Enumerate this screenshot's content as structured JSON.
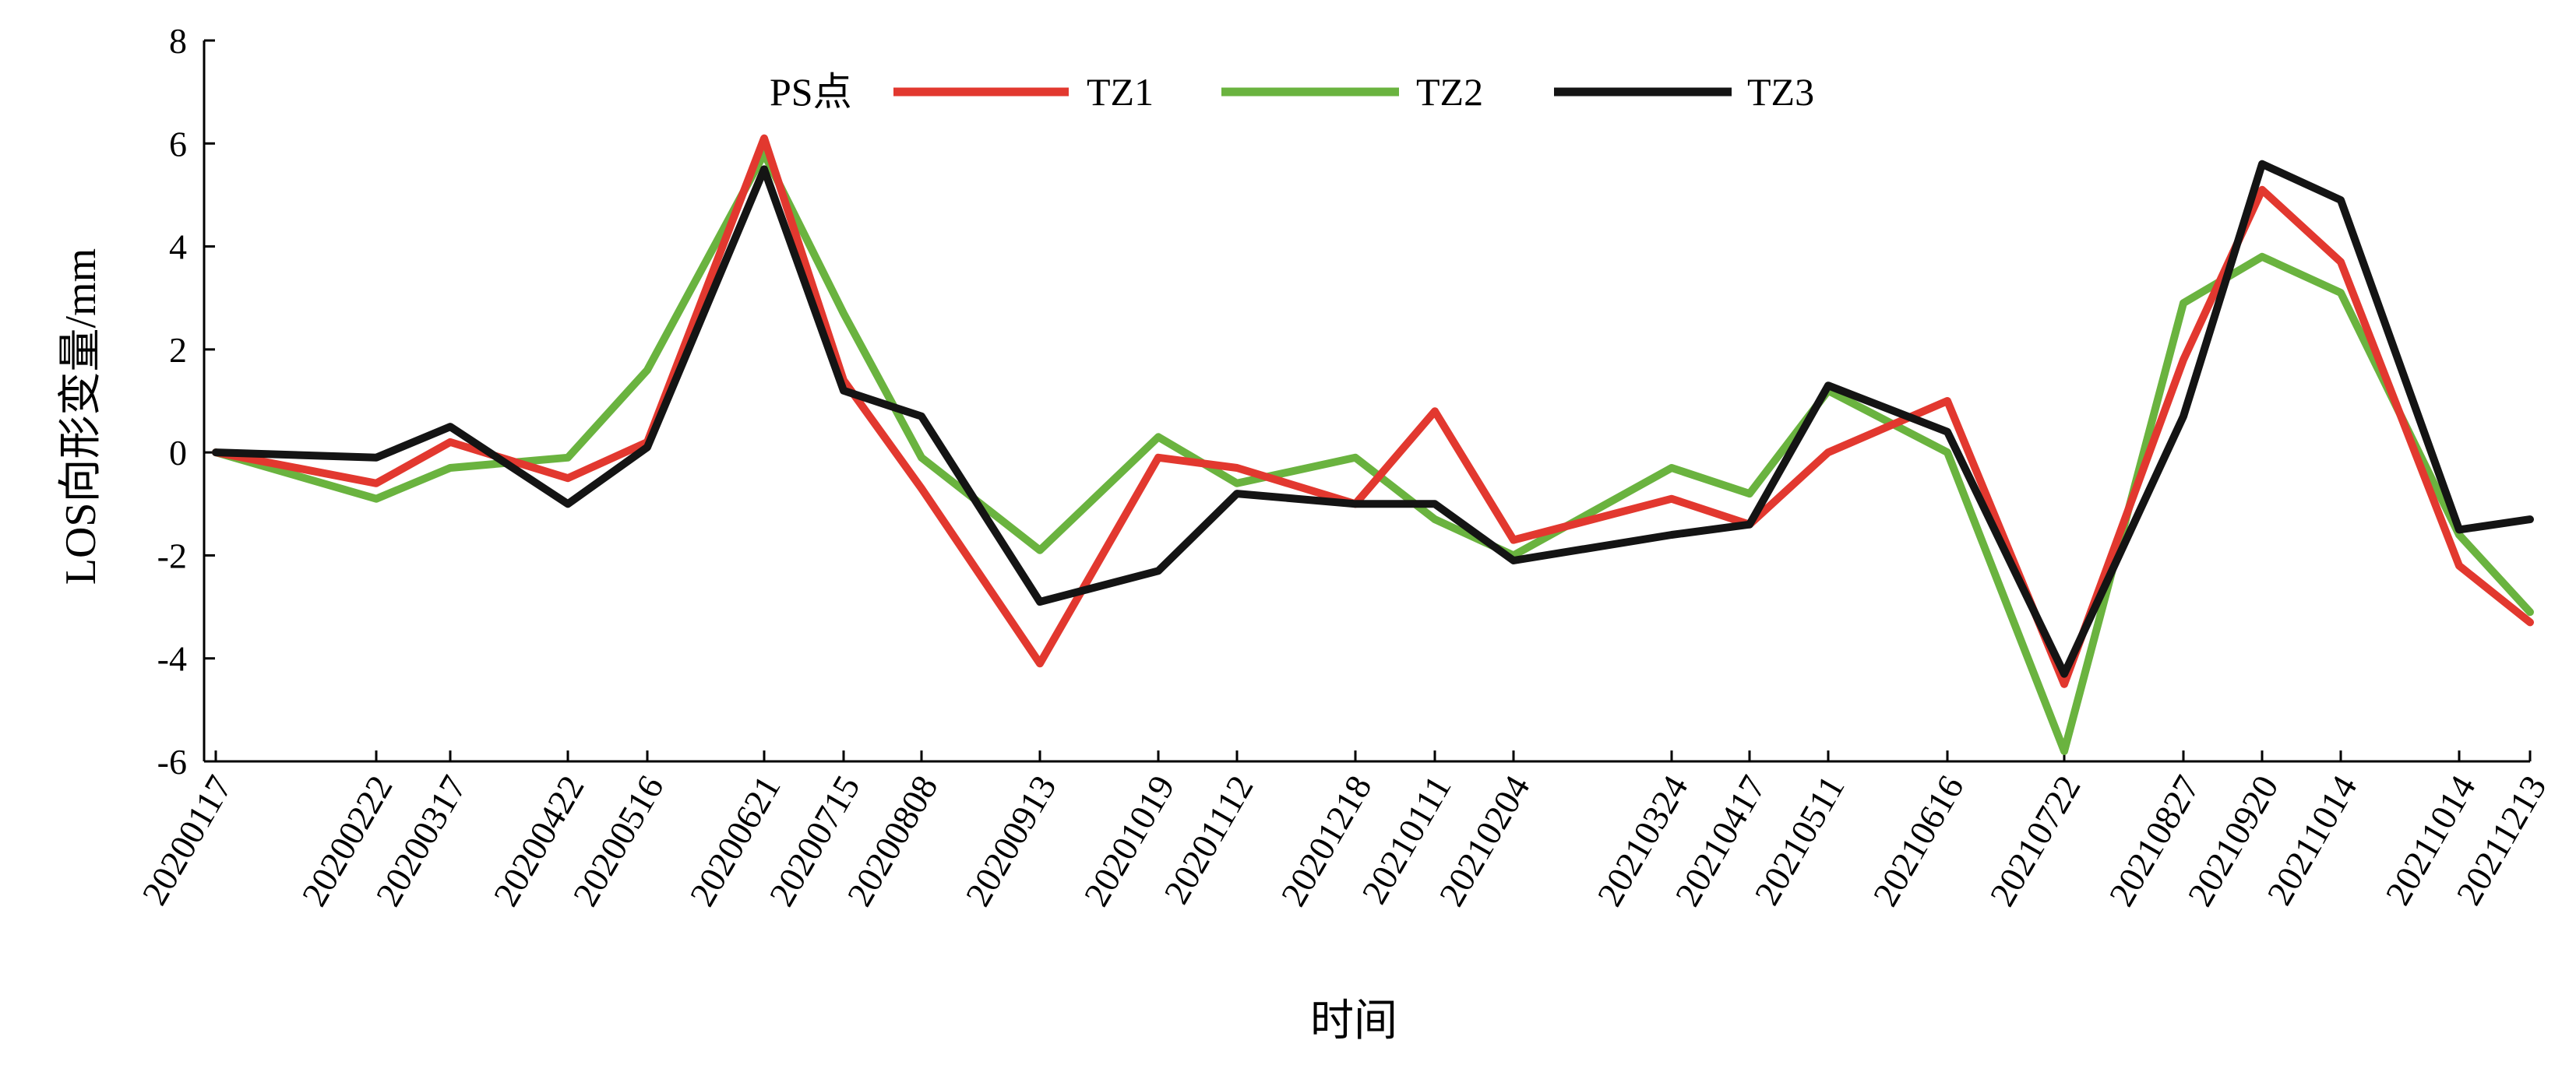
{
  "chart_data": {
    "type": "line",
    "xlabel": "时间",
    "ylabel": "LOS向形变量/mm",
    "ylim": [
      -6,
      8
    ],
    "yticks": [
      "8",
      "6",
      "4",
      "2",
      "0",
      "-2",
      "-4",
      "-6"
    ],
    "x": [
      "20200117",
      "20200222",
      "20200317",
      "20200422",
      "20200516",
      "20200621",
      "20200715",
      "20200808",
      "20200913",
      "20201019",
      "20201112",
      "20201218",
      "20210111",
      "20210204",
      "20210324",
      "20210417",
      "20210511",
      "20210616",
      "20210722",
      "20210827",
      "20210920",
      "20211014",
      "20211014",
      "20211213"
    ],
    "legend_title": "PS点",
    "legend_position": "top",
    "grid": false,
    "series": [
      {
        "name": "TZ1",
        "color": "#e2382f",
        "values": [
          0.0,
          -0.6,
          0.2,
          -0.5,
          0.2,
          6.1,
          1.4,
          -0.7,
          -4.1,
          -0.1,
          -0.3,
          -1.0,
          0.8,
          -1.7,
          -0.9,
          -1.4,
          0.0,
          1.0,
          -4.5,
          1.8,
          5.1,
          3.7,
          -2.2,
          -3.3
        ]
      },
      {
        "name": "TZ2",
        "color": "#6ab33f",
        "values": [
          0.0,
          -0.9,
          -0.3,
          -0.1,
          1.6,
          5.8,
          2.7,
          -0.1,
          -1.9,
          0.3,
          -0.6,
          -0.1,
          -1.3,
          -2.0,
          -0.3,
          -0.8,
          1.2,
          0.0,
          -5.8,
          2.9,
          3.8,
          3.1,
          -1.6,
          -3.1
        ]
      },
      {
        "name": "TZ3",
        "color": "#141414",
        "values": [
          0.0,
          -0.1,
          0.5,
          -1.0,
          0.1,
          5.5,
          1.2,
          0.7,
          -2.9,
          -2.3,
          -0.8,
          -1.0,
          -1.0,
          -2.1,
          -1.6,
          -1.4,
          1.3,
          0.4,
          -4.3,
          0.7,
          5.6,
          4.9,
          -1.5,
          -1.3
        ]
      }
    ]
  }
}
